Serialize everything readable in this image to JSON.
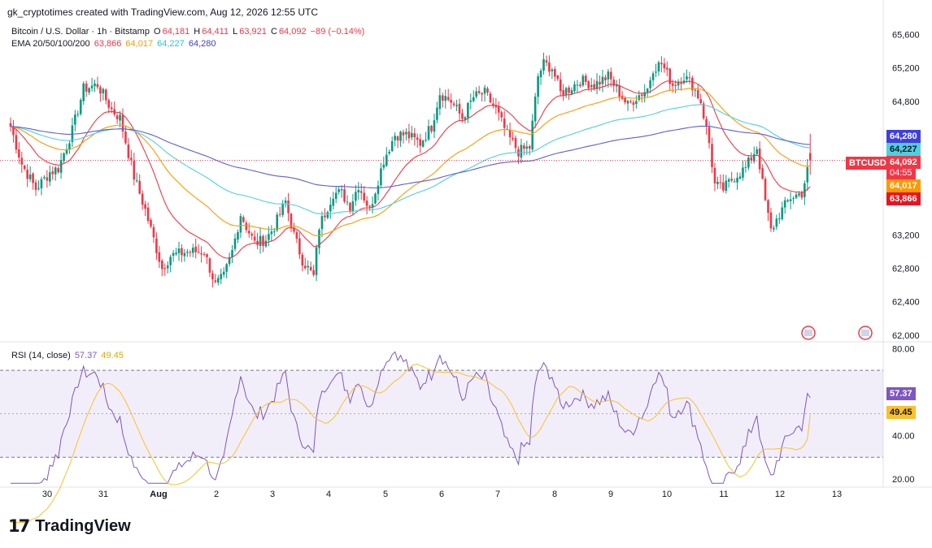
{
  "header": {
    "attribution": "gk_cryptotimes created with TradingView.com, Aug 12, 2026 12:55 UTC"
  },
  "legend": {
    "symbol": "Bitcoin / U.S. Dollar · 1h · Bitstamp",
    "o_label": "O",
    "o_value": "64,181",
    "h_label": "H",
    "h_value": "64,411",
    "l_label": "L",
    "l_value": "63,921",
    "c_label": "C",
    "c_value": "64,092",
    "change": "−89 (−0.14%)",
    "ema_label": "EMA 20/50/100/200",
    "ema20": "63,866",
    "ema50": "64,017",
    "ema100": "64,227",
    "ema200": "64,280"
  },
  "rsi_legend": {
    "label": "RSI (14, close)",
    "rsi": "57.37",
    "ma": "49.45"
  },
  "price_tags": {
    "ema200": "64,280",
    "ema100": "64,227",
    "symbol": "BTCUSD",
    "close": "64,092",
    "countdown": "04:55",
    "ema50": "64,017",
    "ema20": "63,866",
    "rsi": "57.37",
    "rsi_ma": "49.45"
  },
  "colors": {
    "up": "#089981",
    "down": "#f23645",
    "ema20": "#f23645",
    "ema50": "#ff9800",
    "ema100": "#4dd0e1",
    "ema200": "#5b5fd8",
    "rsi": "#7e57c2",
    "rsi_ma": "#fbc02d",
    "rsi_band": "#7e57c2"
  },
  "footer": {
    "brand": "TradingView"
  },
  "chart_data": [
    {
      "type": "candlestick",
      "title": "Bitcoin / U.S. Dollar · 1h · Bitstamp",
      "y_ticks": [
        62000,
        62400,
        62800,
        63200,
        63600,
        64000,
        64400,
        64800,
        65200,
        65600
      ],
      "y_tick_labels": [
        "62,000",
        "62,400",
        "62,800",
        "63,200",
        "",
        "",
        "",
        "64,800",
        "65,200",
        "65,600"
      ],
      "x_tick_labels": [
        "30",
        "31",
        "Aug",
        "2",
        "3",
        "4",
        "5",
        "6",
        "7",
        "8",
        "9",
        "10",
        "11",
        "12",
        "13"
      ],
      "ylim": [
        61950,
        65780
      ],
      "grid": false,
      "keypoints": [
        [
          0,
          64500
        ],
        [
          4,
          64050
        ],
        [
          9,
          63750
        ],
        [
          14,
          63950
        ],
        [
          17,
          64000
        ],
        [
          22,
          64450
        ],
        [
          26,
          64950
        ],
        [
          31,
          65000
        ],
        [
          36,
          64700
        ],
        [
          39,
          64600
        ],
        [
          44,
          63900
        ],
        [
          48,
          63500
        ],
        [
          51,
          63150
        ],
        [
          54,
          62800
        ],
        [
          57,
          62950
        ],
        [
          63,
          63000
        ],
        [
          69,
          63000
        ],
        [
          73,
          62600
        ],
        [
          76,
          62700
        ],
        [
          79,
          63000
        ],
        [
          82,
          63450
        ],
        [
          84,
          63300
        ],
        [
          87,
          63100
        ],
        [
          91,
          63150
        ],
        [
          94,
          63300
        ],
        [
          98,
          63600
        ],
        [
          101,
          63200
        ],
        [
          104,
          62900
        ],
        [
          108,
          62700
        ],
        [
          110,
          63300
        ],
        [
          115,
          63700
        ],
        [
          118,
          63700
        ],
        [
          121,
          63550
        ],
        [
          124,
          63800
        ],
        [
          128,
          63500
        ],
        [
          133,
          64100
        ],
        [
          137,
          64400
        ],
        [
          141,
          64400
        ],
        [
          146,
          64300
        ],
        [
          150,
          64500
        ],
        [
          153,
          64900
        ],
        [
          157,
          64800
        ],
        [
          161,
          64600
        ],
        [
          165,
          64850
        ],
        [
          169,
          64900
        ],
        [
          173,
          64700
        ],
        [
          177,
          64400
        ],
        [
          181,
          64200
        ],
        [
          185,
          64250
        ],
        [
          188,
          65100
        ],
        [
          190,
          65250
        ],
        [
          193,
          65200
        ],
        [
          196,
          64900
        ],
        [
          199,
          64950
        ],
        [
          203,
          65050
        ],
        [
          208,
          65000
        ],
        [
          213,
          65100
        ],
        [
          217,
          64900
        ],
        [
          220,
          64750
        ],
        [
          223,
          64850
        ],
        [
          227,
          64950
        ],
        [
          229,
          65200
        ],
        [
          232,
          65250
        ],
        [
          236,
          65000
        ],
        [
          240,
          65100
        ],
        [
          243,
          65000
        ],
        [
          246,
          64800
        ],
        [
          249,
          64300
        ],
        [
          251,
          63800
        ],
        [
          254,
          63750
        ],
        [
          258,
          63900
        ],
        [
          262,
          64000
        ],
        [
          266,
          64250
        ],
        [
          269,
          63600
        ],
        [
          271,
          63250
        ],
        [
          274,
          63450
        ],
        [
          278,
          63650
        ],
        [
          282,
          63700
        ],
        [
          285,
          64100
        ]
      ],
      "ema_last": {
        "ema20": 63866,
        "ema50": 64017,
        "ema100": 64227,
        "ema200": 64280
      },
      "last": {
        "open": 64181,
        "high": 64411,
        "low": 63921,
        "close": 64092,
        "change": -89,
        "change_pct": -0.14
      }
    },
    {
      "type": "line",
      "title": "RSI (14, close)",
      "y_ticks": [
        20,
        40,
        60,
        80
      ],
      "y_tick_labels": [
        "20.00",
        "40.00",
        "60.00",
        "80.00"
      ],
      "bands": [
        30,
        70
      ],
      "midline": 50,
      "ylim": [
        17,
        82
      ],
      "last": {
        "rsi": 57.37,
        "ma": 49.45
      }
    }
  ]
}
